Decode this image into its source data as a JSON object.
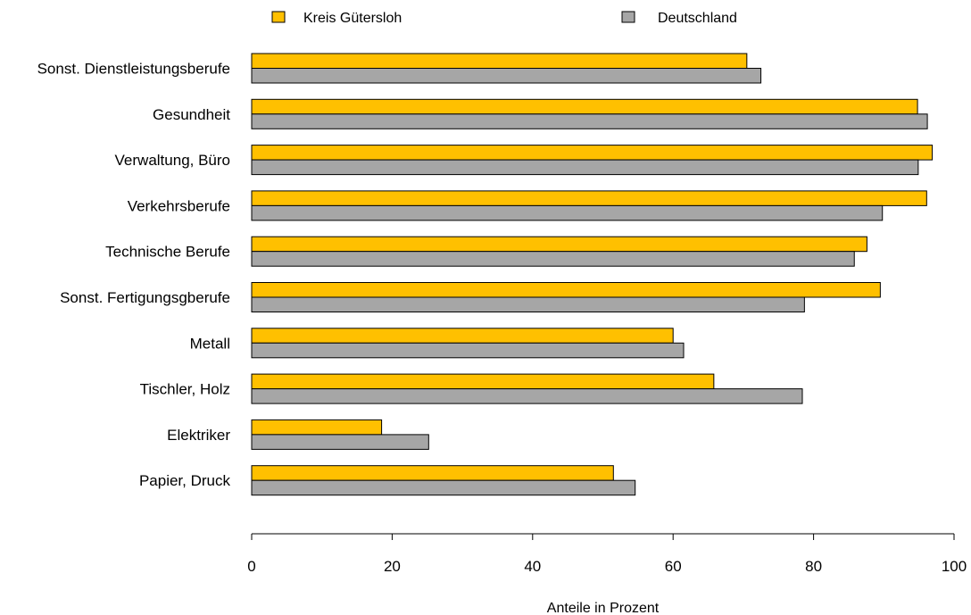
{
  "chart_data": {
    "type": "bar",
    "orientation": "horizontal",
    "title": "",
    "xlabel": "Anteile in Prozent",
    "ylabel": "",
    "xlim": [
      0,
      100
    ],
    "xticks": [
      0,
      20,
      40,
      60,
      80,
      100
    ],
    "grid": false,
    "legend_position": "top",
    "categories": [
      "Sonst. Dienstleistungsberufe",
      "Gesundheit",
      "Verwaltung, Büro",
      "Verkehrsberufe",
      "Technische Berufe",
      "Sonst. Fertigungsgberufe",
      "Metall",
      "Tischler, Holz",
      "Elektriker",
      "Papier, Druck"
    ],
    "series": [
      {
        "name": "Kreis Gütersloh",
        "color": "#FFC000",
        "values": [
          70.5,
          94.8,
          96.9,
          96.1,
          87.6,
          89.5,
          60.0,
          65.8,
          18.5,
          51.5
        ]
      },
      {
        "name": "Deutschland",
        "color": "#A6A6A6",
        "values": [
          72.5,
          96.2,
          94.9,
          89.8,
          85.8,
          78.7,
          61.5,
          78.4,
          25.2,
          54.6
        ]
      }
    ]
  }
}
